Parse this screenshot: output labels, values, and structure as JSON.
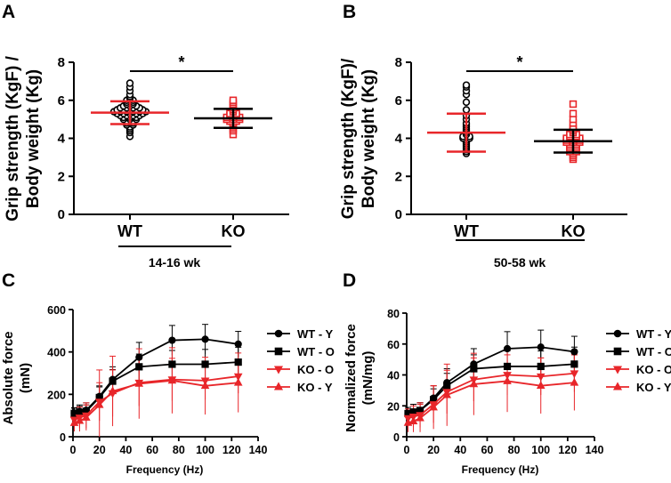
{
  "chart_data": [
    {
      "panel": "A",
      "type": "scatter",
      "ylabel_lines": [
        "Grip strength (KgF) /",
        "Body weight (Kg)"
      ],
      "ylim": [
        0,
        8
      ],
      "yticks": [
        0,
        2,
        4,
        6,
        8
      ],
      "categories": [
        "WT",
        "KO"
      ],
      "group_label": "14-16 wk",
      "significance": "*",
      "groups": [
        {
          "name": "WT",
          "color": "#000000",
          "marker": "circle",
          "mean": 5.35,
          "sd": 0.6,
          "values": [
            4.1,
            4.3,
            4.4,
            4.5,
            4.6,
            4.7,
            4.7,
            4.8,
            4.8,
            4.9,
            4.9,
            5.0,
            5.0,
            5.0,
            5.1,
            5.1,
            5.1,
            5.2,
            5.2,
            5.2,
            5.2,
            5.3,
            5.3,
            5.3,
            5.3,
            5.3,
            5.4,
            5.4,
            5.4,
            5.4,
            5.4,
            5.4,
            5.5,
            5.5,
            5.5,
            5.5,
            5.5,
            5.6,
            5.6,
            5.6,
            5.6,
            5.7,
            5.7,
            5.7,
            5.8,
            5.8,
            5.9,
            5.9,
            6.0,
            6.0,
            6.1,
            6.2,
            6.3,
            6.5,
            6.7,
            6.9
          ]
        },
        {
          "name": "KO",
          "color": "#e8262a",
          "marker": "square",
          "mean": 5.05,
          "sd": 0.5,
          "values": [
            4.2,
            4.4,
            4.5,
            4.6,
            4.7,
            4.8,
            4.9,
            4.9,
            5.0,
            5.0,
            5.0,
            5.1,
            5.1,
            5.1,
            5.2,
            5.2,
            5.3,
            5.3,
            5.4,
            5.5,
            5.6,
            5.7,
            5.8,
            5.9,
            6.0
          ]
        }
      ]
    },
    {
      "panel": "B",
      "type": "scatter",
      "ylabel_lines": [
        "Grip strength (KgF)/",
        "Body weight (Kg)"
      ],
      "ylim": [
        0,
        8
      ],
      "yticks": [
        0,
        2,
        4,
        6,
        8
      ],
      "categories": [
        "WT",
        "KO"
      ],
      "group_label": "50-58 wk",
      "significance": "*",
      "groups": [
        {
          "name": "WT",
          "color": "#000000",
          "marker": "circle",
          "mean": 4.3,
          "sd": 1.0,
          "values": [
            3.2,
            3.3,
            3.4,
            3.5,
            3.6,
            3.7,
            3.8,
            3.9,
            4.0,
            4.0,
            4.1,
            4.1,
            4.2,
            4.3,
            4.4,
            4.5,
            4.6,
            4.7,
            4.8,
            5.0,
            5.2,
            5.5,
            5.9,
            6.3,
            6.5,
            6.7,
            6.8
          ]
        },
        {
          "name": "KO",
          "color": "#e8262a",
          "marker": "square",
          "mean": 3.85,
          "sd": 0.6,
          "values": [
            2.9,
            3.0,
            3.1,
            3.2,
            3.3,
            3.3,
            3.4,
            3.5,
            3.5,
            3.6,
            3.6,
            3.7,
            3.7,
            3.8,
            3.8,
            3.8,
            3.9,
            3.9,
            3.9,
            4.0,
            4.0,
            4.0,
            4.1,
            4.1,
            4.2,
            4.2,
            4.3,
            4.4,
            4.5,
            4.6,
            4.8,
            5.0,
            5.3,
            5.8
          ]
        }
      ]
    },
    {
      "panel": "C",
      "type": "line",
      "ylabel_lines": [
        "Absolute force",
        "(mN)"
      ],
      "xlabel": "Frequency (Hz)",
      "xlim": [
        0,
        140
      ],
      "xticks": [
        0,
        20,
        40,
        60,
        80,
        100,
        120,
        140
      ],
      "ylim": [
        0,
        600
      ],
      "yticks": [
        0,
        200,
        400,
        600
      ],
      "x": [
        1,
        5,
        10,
        20,
        30,
        50,
        75,
        100,
        125
      ],
      "series": [
        {
          "name": "WT - Y",
          "color": "#000000",
          "marker": "circle",
          "values": [
            112,
            120,
            125,
            190,
            270,
            375,
            455,
            460,
            437
          ],
          "err": [
            25,
            30,
            35,
            50,
            60,
            70,
            70,
            70,
            60
          ]
        },
        {
          "name": "WT - O",
          "color": "#000000",
          "marker": "square",
          "values": [
            110,
            115,
            120,
            185,
            262,
            330,
            342,
            342,
            352
          ],
          "err": [
            25,
            28,
            30,
            50,
            55,
            60,
            65,
            70,
            70
          ]
        },
        {
          "name": "KO - O",
          "color": "#e8262a",
          "marker": "tri-down",
          "values": [
            80,
            90,
            100,
            165,
            205,
            255,
            270,
            265,
            285
          ],
          "err": [
            40,
            50,
            60,
            90,
            110,
            110,
            100,
            90,
            80
          ]
        },
        {
          "name": "KO - Y",
          "color": "#e8262a",
          "marker": "tri-up",
          "values": [
            65,
            75,
            90,
            150,
            215,
            250,
            265,
            240,
            255
          ],
          "err": [
            40,
            50,
            60,
            165,
            165,
            165,
            155,
            135,
            140
          ]
        }
      ]
    },
    {
      "panel": "D",
      "type": "line",
      "ylabel_lines": [
        "Normalized force",
        "(mN/mg)"
      ],
      "xlabel": "Frequency (Hz)",
      "xlim": [
        0,
        140
      ],
      "xticks": [
        0,
        20,
        40,
        60,
        80,
        100,
        120,
        140
      ],
      "ylim": [
        0,
        80
      ],
      "yticks": [
        0,
        20,
        40,
        60,
        80
      ],
      "x": [
        1,
        5,
        10,
        20,
        30,
        50,
        75,
        100,
        125
      ],
      "series": [
        {
          "name": "WT - Y",
          "color": "#000000",
          "marker": "circle",
          "values": [
            15,
            16,
            17,
            25,
            35,
            47,
            57,
            58,
            55
          ],
          "err": [
            4,
            5,
            5,
            8,
            9,
            10,
            11,
            11,
            10
          ]
        },
        {
          "name": "WT - O",
          "color": "#000000",
          "marker": "square",
          "values": [
            15,
            16,
            17,
            24,
            33,
            44,
            45.5,
            45.5,
            47
          ],
          "err": [
            4,
            5,
            5,
            7,
            8,
            9,
            10,
            10,
            11
          ]
        },
        {
          "name": "KO - O",
          "color": "#e8262a",
          "marker": "tri-down",
          "values": [
            12,
            13,
            14,
            21,
            29,
            37,
            40,
            39,
            41
          ],
          "err": [
            6,
            7,
            8,
            12,
            14,
            14,
            13,
            12,
            12
          ]
        },
        {
          "name": "KO - Y",
          "color": "#e8262a",
          "marker": "tri-up",
          "values": [
            9,
            10,
            12,
            19,
            27,
            34,
            36,
            33,
            35
          ],
          "err": [
            6,
            7,
            9,
            14,
            20,
            20,
            20,
            18,
            18
          ]
        }
      ]
    }
  ]
}
